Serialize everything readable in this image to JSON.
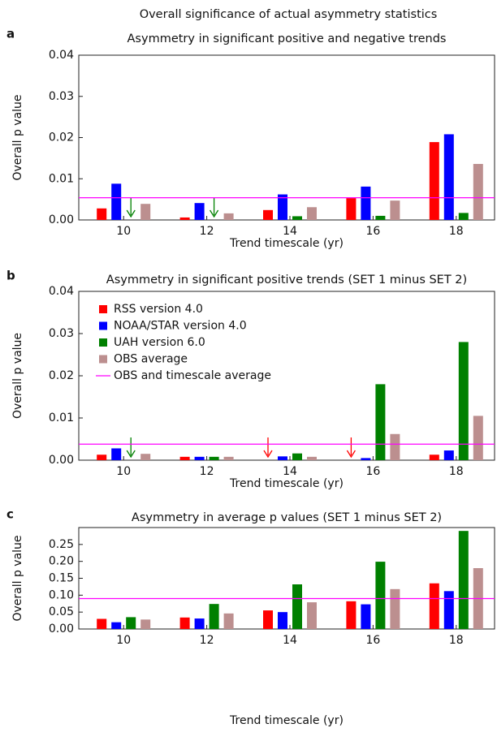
{
  "title": "Overall significance of actual asymmetry statistics",
  "chart_data": [
    {
      "type": "bar",
      "label": "a",
      "title": "Asymmetry in significant positive and negative trends",
      "xlabel": "Trend timescale (yr)",
      "ylabel": "Overall p value",
      "categories": [
        "10",
        "12",
        "14",
        "16",
        "18"
      ],
      "series": [
        {
          "color": "#ff0000",
          "values": [
            0.0028,
            0.0006,
            0.0024,
            0.0053,
            0.0189
          ]
        },
        {
          "color": "#0000ff",
          "values": [
            0.0088,
            0.0041,
            0.0062,
            0.0081,
            0.0208
          ]
        },
        {
          "color": "#008000",
          "values": [
            0,
            0,
            0.0009,
            0.001,
            0.0017
          ]
        },
        {
          "color": "#bc8f8f",
          "values": [
            0.0039,
            0.0016,
            0.0031,
            0.0047,
            0.0136
          ]
        }
      ],
      "reference_value": 0.0054,
      "reference_color": "#ff00ff",
      "ylim": [
        0,
        0.04
      ],
      "yticks": [
        {
          "value": 0,
          "label": "0.00"
        },
        0.01,
        0.02,
        0.03,
        0.04
      ]
    },
    {
      "type": "bar",
      "label": "b",
      "title": "Asymmetry in significant positive trends (SET 1 minus SET 2)",
      "xlabel": "Trend timescale (yr)",
      "ylabel": "Overall p value",
      "categories": [
        "10",
        "12",
        "14",
        "16",
        "18"
      ],
      "series": [
        {
          "name": "RSS version 4.0",
          "color": "#ff0000",
          "values": [
            0.0013,
            0.0008,
            0,
            0,
            0.0013
          ]
        },
        {
          "name": "NOAA/STAR version 4.0",
          "color": "#0000ff",
          "values": [
            0.0028,
            0.0008,
            0.0009,
            0.0005,
            0.0023
          ]
        },
        {
          "name": "UAH version 6.0",
          "color": "#008000",
          "values": [
            0,
            0.0008,
            0.0016,
            0.018,
            0.028
          ]
        },
        {
          "name": "OBS average",
          "color": "#bc8f8f",
          "values": [
            0.0015,
            0.0008,
            0.0008,
            0.0062,
            0.0105
          ]
        }
      ],
      "reference_value": 0.0038,
      "reference_color": "#ff00ff",
      "reference_name": "OBS and timescale average",
      "legend": true,
      "ylim": [
        0,
        0.04
      ],
      "yticks": [
        {
          "value": 0,
          "label": "0.00"
        },
        0.01,
        0.02,
        0.03,
        0.04
      ]
    },
    {
      "type": "bar",
      "label": "c",
      "title": "Asymmetry in average p values (SET 1 minus SET 2)",
      "xlabel": "Trend timescale (yr)",
      "ylabel": "Overall p value",
      "categories": [
        "10",
        "12",
        "14",
        "16",
        "18"
      ],
      "series": [
        {
          "color": "#ff0000",
          "values": [
            0.03,
            0.034,
            0.055,
            0.082,
            0.135
          ]
        },
        {
          "color": "#0000ff",
          "values": [
            0.02,
            0.031,
            0.05,
            0.073,
            0.112
          ]
        },
        {
          "color": "#008000",
          "values": [
            0.035,
            0.074,
            0.132,
            0.199,
            0.29
          ]
        },
        {
          "color": "#bc8f8f",
          "values": [
            0.028,
            0.046,
            0.079,
            0.118,
            0.18
          ]
        }
      ],
      "reference_value": 0.09,
      "reference_color": "#ff00ff",
      "ylim": [
        0,
        0.3
      ],
      "yticks": [
        {
          "value": 0,
          "label": "0.00"
        },
        0.05,
        {
          "value": 0.1,
          "label": "0.10"
        },
        0.15,
        {
          "value": 0.2,
          "label": "0.20"
        },
        0.25
      ]
    }
  ]
}
